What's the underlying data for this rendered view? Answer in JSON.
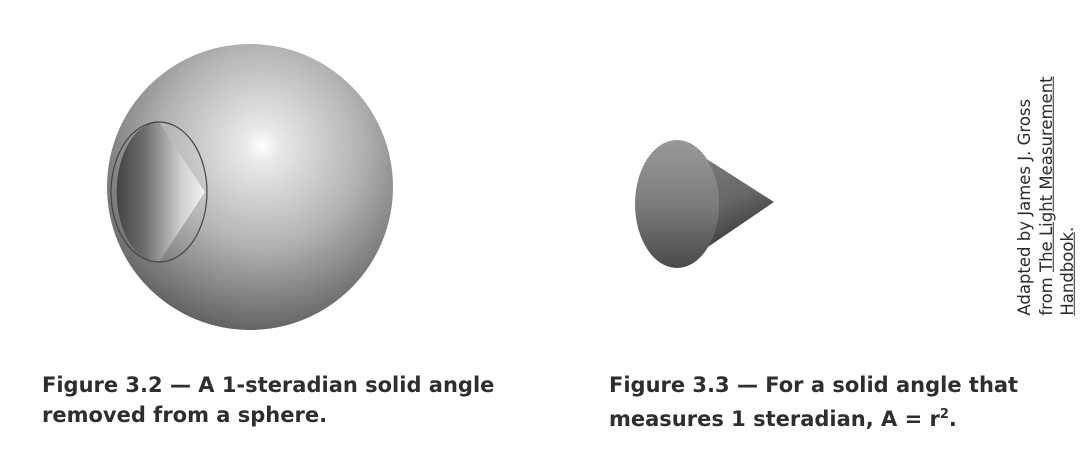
{
  "figures": [
    {
      "caption_line1": "Figure 3.2 — A 1-steradian solid angle",
      "caption_line2": "removed from a sphere."
    },
    {
      "caption_line1": "Figure 3.3 — For a solid angle that",
      "caption_line2_prefix": "measures 1 steradian, A = r",
      "caption_line2_sup": "2",
      "caption_line2_suffix": "."
    }
  ],
  "credit": {
    "line1": "Adapted by James J. Gross",
    "line2_prefix": "from ",
    "line2_title": "The Light Measurement",
    "line3_title": "Handbook",
    "line3_suffix": "."
  }
}
